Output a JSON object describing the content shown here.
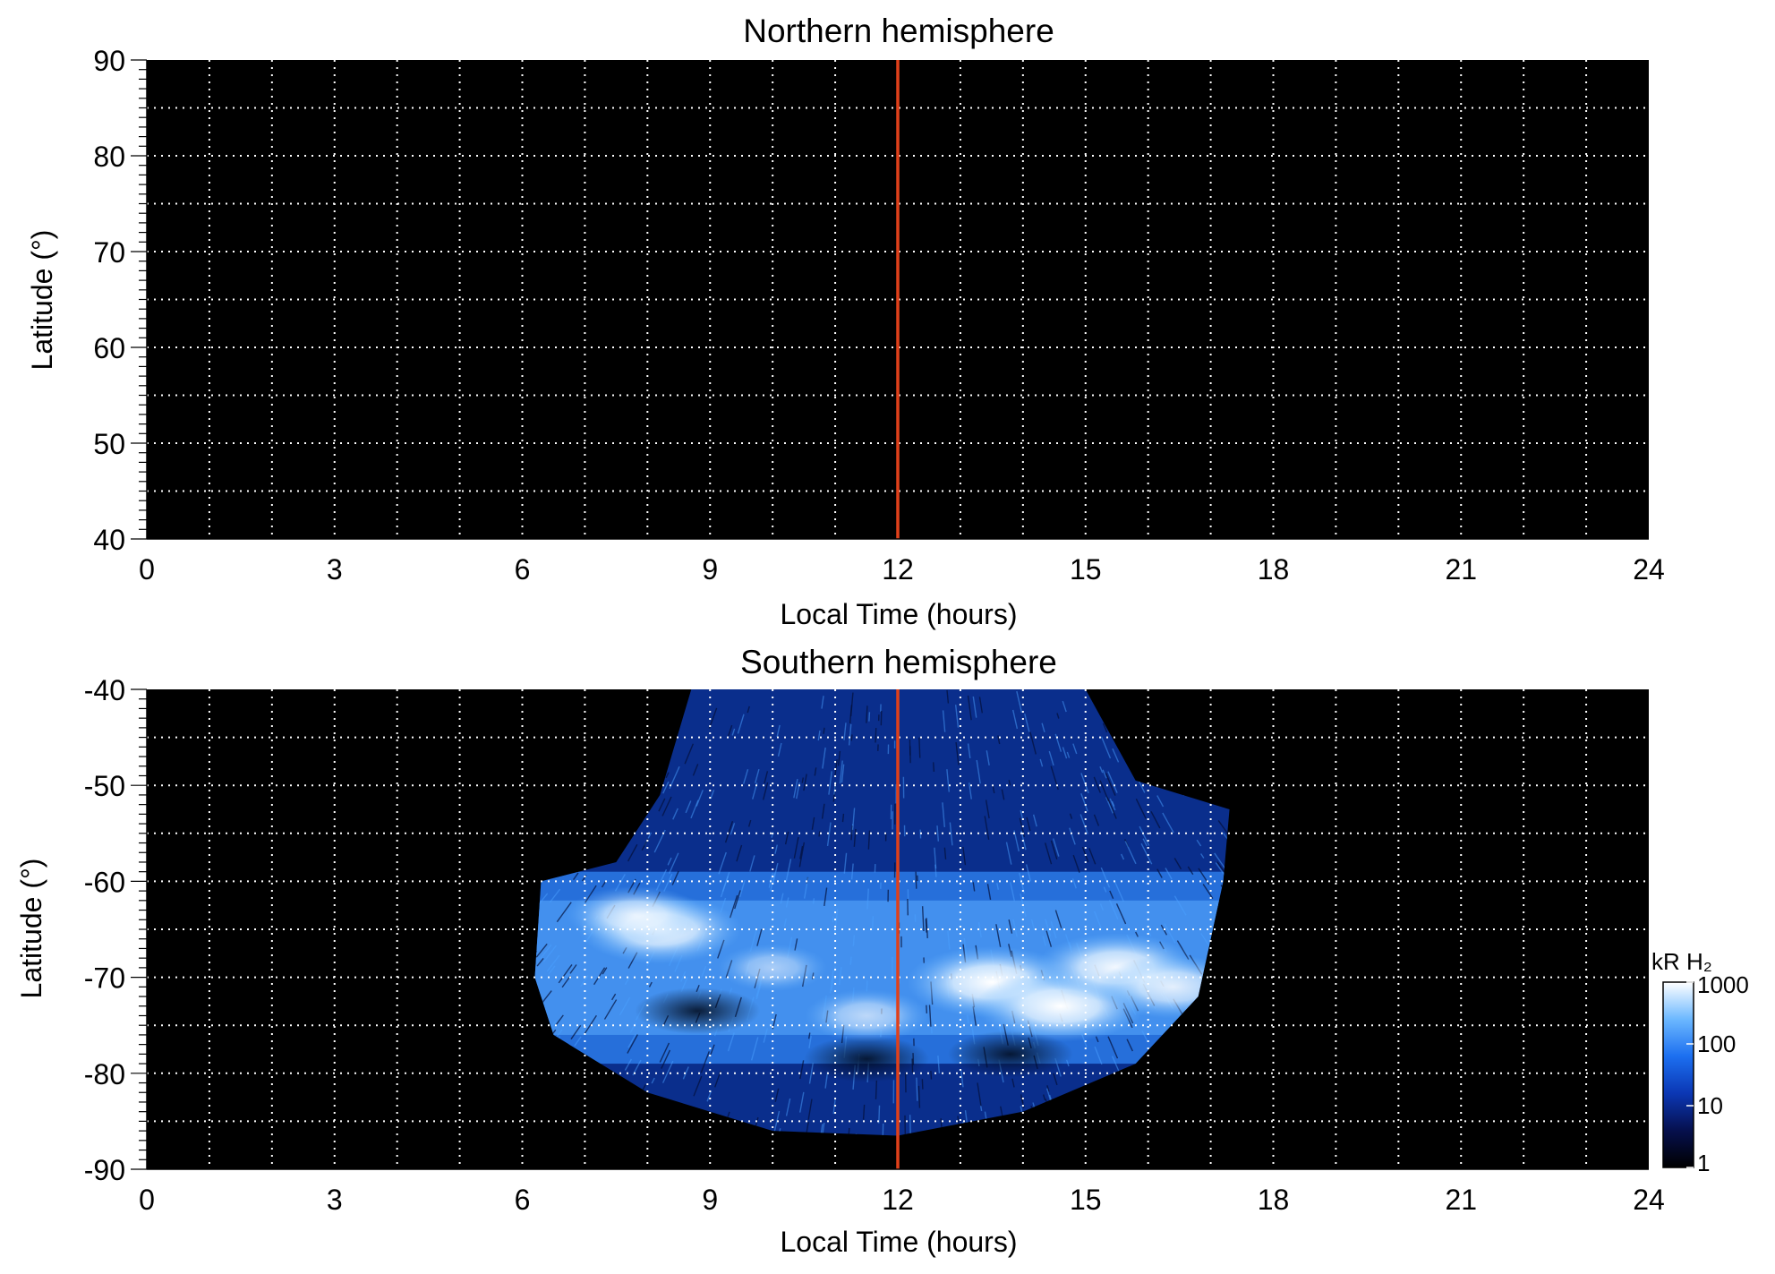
{
  "chart_data": [
    {
      "type": "heatmap",
      "title": "Northern hemisphere",
      "xlabel": "Local Time (hours)",
      "ylabel": "Latitude (°)",
      "xlim": [
        0,
        24
      ],
      "ylim": [
        40,
        90
      ],
      "x_ticks": [
        "0",
        "3",
        "6",
        "9",
        "12",
        "15",
        "18",
        "21",
        "24"
      ],
      "y_ticks": [
        "90",
        "80",
        "70",
        "60",
        "50",
        "40"
      ],
      "y_tick_values": [
        90,
        80,
        70,
        60,
        50,
        40
      ],
      "grid": true,
      "reference_line": {
        "x": 12,
        "color": "#e0401a"
      },
      "emission_region": null
    },
    {
      "type": "heatmap",
      "title": "Southern hemisphere",
      "xlabel": "Local Time (hours)",
      "ylabel": "Latitude (°)",
      "xlim": [
        0,
        24
      ],
      "ylim": [
        -90,
        -40
      ],
      "x_ticks": [
        "0",
        "3",
        "6",
        "9",
        "12",
        "15",
        "18",
        "21",
        "24"
      ],
      "y_ticks": [
        "-40",
        "-50",
        "-60",
        "-70",
        "-80",
        "-90"
      ],
      "y_tick_values": [
        -40,
        -50,
        -60,
        -70,
        -80,
        -90
      ],
      "grid": true,
      "reference_line": {
        "x": 12,
        "color": "#e0401a"
      },
      "emission_region": {
        "boundary": [
          [
            8.7,
            -40
          ],
          [
            15.0,
            -40
          ],
          [
            15.8,
            -49.5
          ],
          [
            17.3,
            -52.5
          ],
          [
            17.2,
            -60
          ],
          [
            16.8,
            -72
          ],
          [
            15.8,
            -79
          ],
          [
            14.0,
            -84
          ],
          [
            12.0,
            -86.5
          ],
          [
            10.0,
            -86
          ],
          [
            8.0,
            -82
          ],
          [
            6.5,
            -76
          ],
          [
            6.2,
            -70
          ],
          [
            6.3,
            -60
          ],
          [
            7.5,
            -58
          ],
          [
            8.2,
            -51
          ]
        ],
        "bright_spots": [
          {
            "x": 8.2,
            "y": -65,
            "intensity": 0.95
          },
          {
            "x": 7.8,
            "y": -63.5,
            "intensity": 0.75
          },
          {
            "x": 13.5,
            "y": -70.5,
            "intensity": 1.0
          },
          {
            "x": 14.6,
            "y": -73,
            "intensity": 1.0
          },
          {
            "x": 15.5,
            "y": -69,
            "intensity": 0.95
          },
          {
            "x": 16.4,
            "y": -71,
            "intensity": 0.85
          },
          {
            "x": 11.5,
            "y": -74,
            "intensity": 0.65
          },
          {
            "x": 10.0,
            "y": -69,
            "intensity": 0.55
          }
        ],
        "dark_lanes": [
          {
            "x": 8.8,
            "y": -73.5
          },
          {
            "x": 11.5,
            "y": -78.5
          },
          {
            "x": 13.8,
            "y": -78
          }
        ]
      }
    }
  ],
  "colorbar": {
    "label": "kR H₂",
    "scale": "log",
    "range": [
      1,
      1000
    ],
    "ticks": [
      "1000",
      "100",
      "10",
      "1"
    ],
    "tick_values": [
      1000,
      100,
      10,
      1
    ],
    "colors": [
      "#000000",
      "#06104e",
      "#0b37b4",
      "#1c6ff0",
      "#6cb8ff",
      "#ffffff"
    ]
  }
}
